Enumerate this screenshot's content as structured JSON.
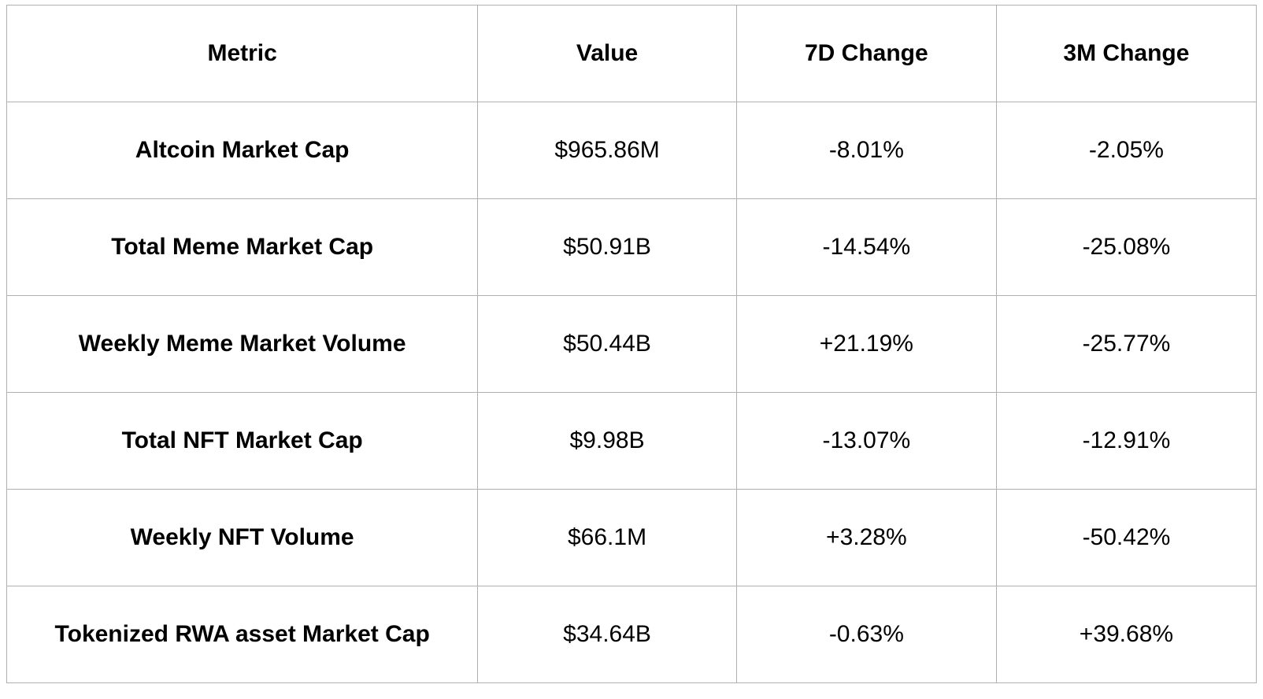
{
  "colors": {
    "background": "#ffffff",
    "border": "#b0b0b0",
    "text": "#000000"
  },
  "table": {
    "headers": [
      "Metric",
      "Value",
      "7D Change",
      "3M Change"
    ],
    "rows": [
      {
        "metric": "Altcoin Market Cap",
        "value": "$965.86M",
        "change_7d": "-8.01%",
        "change_3m": "-2.05%"
      },
      {
        "metric": "Total Meme Market Cap",
        "value": "$50.91B",
        "change_7d": "-14.54%",
        "change_3m": "-25.08%"
      },
      {
        "metric": "Weekly Meme Market Volume",
        "value": "$50.44B",
        "change_7d": "+21.19%",
        "change_3m": "-25.77%"
      },
      {
        "metric": "Total NFT Market Cap",
        "value": "$9.98B",
        "change_7d": "-13.07%",
        "change_3m": "-12.91%"
      },
      {
        "metric": "Weekly NFT Volume",
        "value": "$66.1M",
        "change_7d": "+3.28%",
        "change_3m": "-50.42%"
      },
      {
        "metric": "Tokenized RWA asset Market Cap",
        "value": "$34.64B",
        "change_7d": "-0.63%",
        "change_3m": "+39.68%"
      }
    ]
  },
  "chart_data": {
    "type": "table",
    "columns": [
      "Metric",
      "Value",
      "7D Change",
      "3M Change"
    ],
    "rows": [
      [
        "Altcoin Market Cap",
        "$965.86M",
        "-8.01%",
        "-2.05%"
      ],
      [
        "Total Meme Market Cap",
        "$50.91B",
        "-14.54%",
        "-25.08%"
      ],
      [
        "Weekly Meme Market Volume",
        "$50.44B",
        "+21.19%",
        "-25.77%"
      ],
      [
        "Total NFT Market Cap",
        "$9.98B",
        "-13.07%",
        "-12.91%"
      ],
      [
        "Weekly NFT Volume",
        "$66.1M",
        "+3.28%",
        "-50.42%"
      ],
      [
        "Tokenized RWA asset Market Cap",
        "$34.64B",
        "-0.63%",
        "+39.68%"
      ]
    ]
  }
}
